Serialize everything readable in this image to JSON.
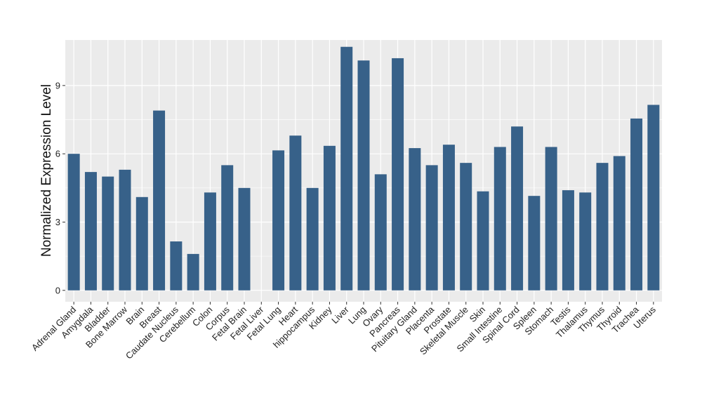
{
  "chart_data": {
    "type": "bar",
    "title": "",
    "xlabel": "",
    "ylabel": "Normalized Expression Level",
    "ylim": [
      -0.5,
      11.0
    ],
    "yticks": [
      0,
      3,
      6,
      9
    ],
    "grid": true,
    "bar_color": "#376189",
    "panel_color": "#ebebeb",
    "grid_color": "#ffffff",
    "categories": [
      "Adrenal Gland",
      "Amygdala",
      "Bladder",
      "Bone Marrow",
      "Brain",
      "Breast",
      "Caudate Nucleus",
      "Cerebellum",
      "Colon",
      "Corpus",
      "Fetal Brain",
      "Fetal Liver",
      "Fetal Lung",
      "Heart",
      "hippocampus",
      "Kidney",
      "Liver",
      "Lung",
      "Ovary",
      "Pancreas",
      "Pituitary Gland",
      "Placenta",
      "Prostate",
      "Skeletal Muscle",
      "Skin",
      "Small Intestine",
      "Spinal Cord",
      "Spleen",
      "Stomach",
      "Testis",
      "Thalamus",
      "Thymus",
      "Thyroid",
      "Trachea",
      "Uterus"
    ],
    "values": [
      6.0,
      5.2,
      5.0,
      5.3,
      4.1,
      7.9,
      2.15,
      1.6,
      4.3,
      5.5,
      4.5,
      0,
      6.15,
      6.8,
      4.5,
      6.35,
      10.7,
      10.1,
      5.1,
      10.2,
      6.25,
      5.5,
      6.4,
      5.6,
      4.35,
      6.3,
      7.2,
      4.15,
      6.3,
      4.4,
      4.3,
      5.6,
      5.9,
      7.55,
      8.15
    ]
  }
}
